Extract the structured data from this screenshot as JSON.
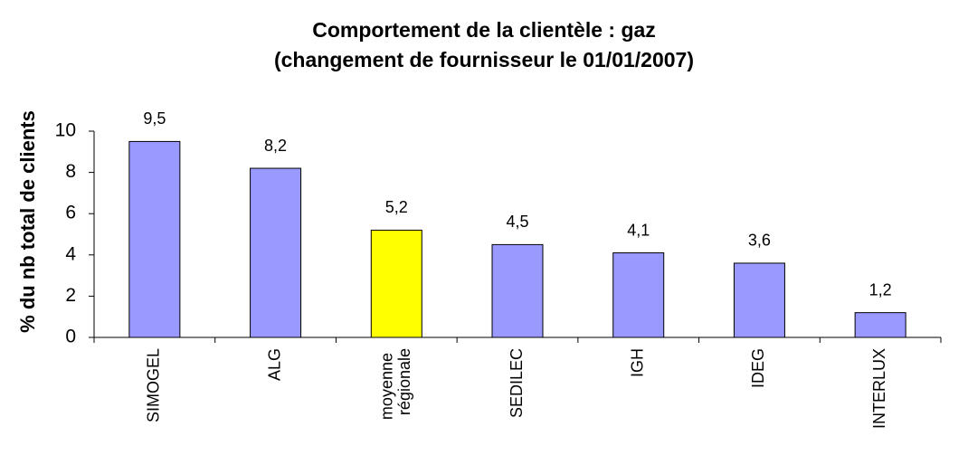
{
  "chart_data": {
    "type": "bar",
    "title": "Comportement de la clientèle : gaz",
    "subtitle": "(changement de fournisseur le 01/01/2007)",
    "y_label": "% du nb total de clients",
    "categories": [
      "SIMOGEL",
      "ALG",
      "moyenne régionale",
      "SEDILEC",
      "IGH",
      "IDEG",
      "INTERLUX"
    ],
    "values": [
      9.5,
      8.2,
      5.2,
      4.5,
      4.1,
      3.6,
      1.2
    ],
    "value_labels": [
      "9,5",
      "8,2",
      "5,2",
      "4,5",
      "4,1",
      "3,6",
      "1,2"
    ],
    "colors": [
      "#9999ff",
      "#9999ff",
      "#ffff00",
      "#9999ff",
      "#9999ff",
      "#9999ff",
      "#9999ff"
    ],
    "ylim": [
      0,
      10
    ],
    "yticks": [
      0,
      2,
      4,
      6,
      8,
      10
    ],
    "grid": false
  }
}
